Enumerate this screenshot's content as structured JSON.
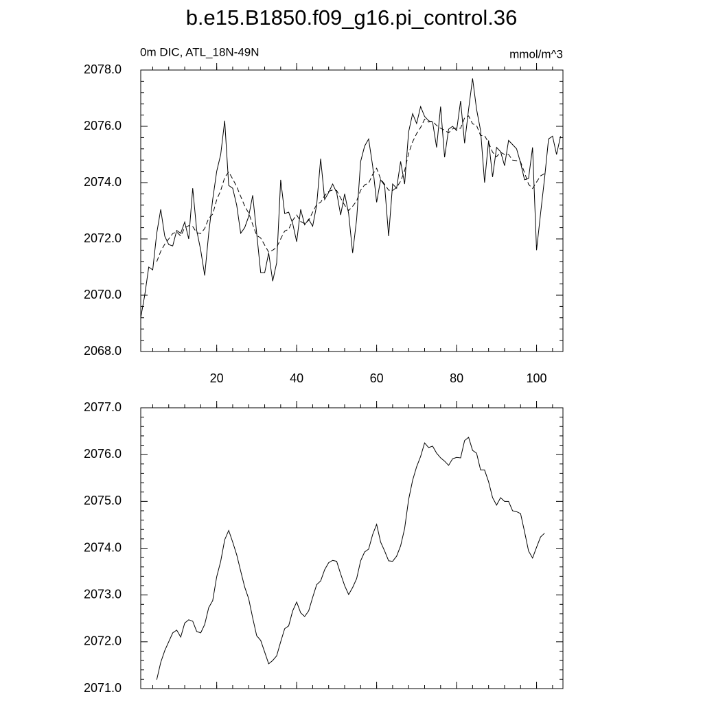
{
  "chart_data": [
    {
      "type": "line",
      "title": "b.e15.B1850.f09_g16.pi_control.36",
      "left_label": "0m DIC, ATL_18N-49N",
      "right_label": "mmol/m^3",
      "x": [
        1,
        2,
        3,
        4,
        5,
        6,
        7,
        8,
        9,
        10,
        11,
        12,
        13,
        14,
        15,
        16,
        17,
        18,
        19,
        20,
        21,
        22,
        23,
        24,
        25,
        26,
        27,
        28,
        29,
        30,
        31,
        32,
        33,
        34,
        35,
        36,
        37,
        38,
        39,
        40,
        41,
        42,
        43,
        44,
        45,
        46,
        47,
        48,
        49,
        50,
        51,
        52,
        53,
        54,
        55,
        56,
        57,
        58,
        59,
        60,
        61,
        62,
        63,
        64,
        65,
        66,
        67,
        68,
        69,
        70,
        71,
        72,
        73,
        74,
        75,
        76,
        77,
        78,
        79,
        80,
        81,
        82,
        83,
        84,
        85,
        86,
        87,
        88,
        89,
        90,
        91,
        92,
        93,
        94,
        95,
        96,
        97,
        98,
        99,
        100,
        101,
        102,
        103,
        104,
        105,
        106
      ],
      "series": [
        {
          "color": "#000000",
          "style": "solid",
          "values": [
            2069.2,
            2070.0,
            2071.0,
            2070.9,
            2072.2,
            2073.05,
            2072.1,
            2071.8,
            2071.75,
            2072.3,
            2072.2,
            2072.6,
            2072.0,
            2073.8,
            2072.3,
            2071.6,
            2070.7,
            2072.2,
            2073.4,
            2074.4,
            2075.0,
            2076.2,
            2073.9,
            2073.8,
            2073.2,
            2072.2,
            2072.4,
            2072.8,
            2073.55,
            2072.2,
            2070.8,
            2070.8,
            2071.5,
            2070.5,
            2071.15,
            2074.1,
            2072.9,
            2072.95,
            2072.55,
            2071.9,
            2073.05,
            2072.5,
            2072.7,
            2072.45,
            2073.2,
            2074.85,
            2073.4,
            2073.65,
            2073.95,
            2073.65,
            2072.85,
            2073.6,
            2072.9,
            2071.5,
            2072.7,
            2074.75,
            2075.3,
            2075.55,
            2074.6,
            2073.3,
            2074.1,
            2073.9,
            2072.1,
            2073.95,
            2073.8,
            2074.75,
            2073.95,
            2075.8,
            2076.45,
            2076.1,
            2076.7,
            2076.35,
            2076.2,
            2076.15,
            2075.25,
            2076.7,
            2074.9,
            2075.9,
            2076.0,
            2075.85,
            2076.9,
            2075.4,
            2076.6,
            2077.7,
            2076.6,
            2075.85,
            2074.0,
            2075.5,
            2074.2,
            2075.25,
            2075.1,
            2074.6,
            2075.5,
            2075.35,
            2075.2,
            2074.7,
            2074.1,
            2074.15,
            2075.25,
            2071.6,
            2072.9,
            2074.15,
            2075.55,
            2075.65,
            2075.0,
            2075.65
          ]
        },
        {
          "color": "#000000",
          "style": "dashed",
          "values": [
            null,
            null,
            null,
            null,
            2071.19,
            2071.56,
            2071.81,
            2072.0,
            2072.19,
            2072.25,
            2072.1,
            2072.4,
            2072.47,
            2072.44,
            2072.22,
            2072.19,
            2072.37,
            2072.73,
            2072.88,
            2073.39,
            2073.72,
            2074.18,
            2074.38,
            2074.13,
            2073.86,
            2073.51,
            2073.17,
            2072.92,
            2072.51,
            2072.13,
            2072.03,
            2071.78,
            2071.53,
            2071.6,
            2071.7,
            2072.0,
            2072.28,
            2072.34,
            2072.66,
            2072.85,
            2072.62,
            2072.54,
            2072.66,
            2072.95,
            2073.22,
            2073.3,
            2073.54,
            2073.69,
            2073.74,
            2073.72,
            2073.45,
            2073.2,
            2073.01,
            2073.16,
            2073.35,
            2073.73,
            2073.92,
            2073.98,
            2074.29,
            2074.51,
            2074.13,
            2073.94,
            2073.73,
            2073.72,
            2073.83,
            2074.05,
            2074.42,
            2075.04,
            2075.45,
            2075.74,
            2075.96,
            2076.25,
            2076.15,
            2076.18,
            2076.03,
            2075.93,
            2075.86,
            2075.77,
            2075.91,
            2075.94,
            2075.93,
            2076.3,
            2076.37,
            2076.09,
            2076.03,
            2075.67,
            2075.67,
            2075.42,
            2075.08,
            2074.92,
            2075.08,
            2075.0,
            2075.0,
            2074.8,
            2074.78,
            2074.74,
            2074.35,
            2073.94,
            2073.79,
            2074.02,
            2074.24,
            2074.32,
            null,
            null,
            null,
            null
          ]
        }
      ],
      "xlim": [
        1,
        106.6
      ],
      "xticks": [
        20,
        40,
        60,
        80,
        100
      ],
      "ylim": [
        2068,
        2078
      ],
      "yticks": [
        {
          "value": 2068,
          "label": "2068.0"
        },
        {
          "value": 2070,
          "label": "2070.0"
        },
        {
          "value": 2072,
          "label": "2072.0"
        },
        {
          "value": 2074,
          "label": "2074.0"
        },
        {
          "value": 2076,
          "label": "2076.0"
        },
        {
          "value": 2078,
          "label": "2078.0"
        }
      ],
      "grid": false
    },
    {
      "type": "line",
      "x": [
        5,
        6,
        7,
        8,
        9,
        10,
        11,
        12,
        13,
        14,
        15,
        16,
        17,
        18,
        19,
        20,
        21,
        22,
        23,
        24,
        25,
        26,
        27,
        28,
        29,
        30,
        31,
        32,
        33,
        34,
        35,
        36,
        37,
        38,
        39,
        40,
        41,
        42,
        43,
        44,
        45,
        46,
        47,
        48,
        49,
        50,
        51,
        52,
        53,
        54,
        55,
        56,
        57,
        58,
        59,
        60,
        61,
        62,
        63,
        64,
        65,
        66,
        67,
        68,
        69,
        70,
        71,
        72,
        73,
        74,
        75,
        76,
        77,
        78,
        79,
        80,
        81,
        82,
        83,
        84,
        85,
        86,
        87,
        88,
        89,
        90,
        91,
        92,
        93,
        94,
        95,
        96,
        97,
        98,
        99,
        100,
        101,
        102
      ],
      "series": [
        {
          "color": "#000000",
          "style": "solid",
          "values": [
            2071.19,
            2071.56,
            2071.81,
            2072.0,
            2072.19,
            2072.25,
            2072.1,
            2072.4,
            2072.47,
            2072.44,
            2072.22,
            2072.19,
            2072.37,
            2072.73,
            2072.88,
            2073.39,
            2073.72,
            2074.18,
            2074.38,
            2074.13,
            2073.86,
            2073.51,
            2073.17,
            2072.92,
            2072.51,
            2072.13,
            2072.03,
            2071.78,
            2071.53,
            2071.6,
            2071.7,
            2072.0,
            2072.28,
            2072.34,
            2072.66,
            2072.85,
            2072.62,
            2072.54,
            2072.66,
            2072.95,
            2073.22,
            2073.3,
            2073.54,
            2073.69,
            2073.74,
            2073.72,
            2073.45,
            2073.2,
            2073.01,
            2073.16,
            2073.35,
            2073.73,
            2073.92,
            2073.98,
            2074.29,
            2074.51,
            2074.13,
            2073.94,
            2073.73,
            2073.72,
            2073.83,
            2074.05,
            2074.42,
            2075.04,
            2075.45,
            2075.74,
            2075.96,
            2076.25,
            2076.15,
            2076.18,
            2076.03,
            2075.93,
            2075.86,
            2075.77,
            2075.91,
            2075.94,
            2075.93,
            2076.3,
            2076.37,
            2076.09,
            2076.03,
            2075.67,
            2075.67,
            2075.42,
            2075.08,
            2074.92,
            2075.08,
            2075.0,
            2075.0,
            2074.8,
            2074.78,
            2074.74,
            2074.35,
            2073.94,
            2073.79,
            2074.02,
            2074.24,
            2074.32
          ]
        }
      ],
      "xlim": [
        1,
        106.6
      ],
      "xticks": [
        20,
        40,
        60,
        80,
        100
      ],
      "xtick_labels": false,
      "ylim": [
        2071,
        2077
      ],
      "yticks": [
        {
          "value": 2071,
          "label": "2071.0"
        },
        {
          "value": 2072,
          "label": "2072.0"
        },
        {
          "value": 2073,
          "label": "2073.0"
        },
        {
          "value": 2074,
          "label": "2074.0"
        },
        {
          "value": 2075,
          "label": "2075.0"
        },
        {
          "value": 2076,
          "label": "2076.0"
        },
        {
          "value": 2077,
          "label": "2077.0"
        }
      ],
      "grid": false
    }
  ]
}
